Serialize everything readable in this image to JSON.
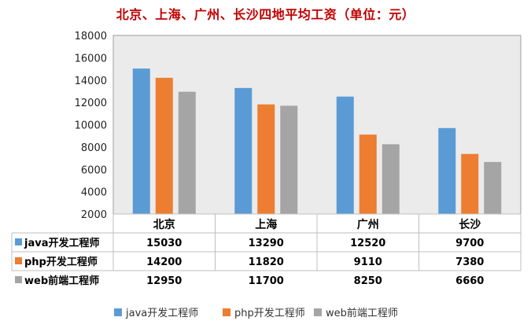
{
  "chart_data": {
    "type": "bar",
    "title": "北京、上海、广州、长沙四地平均工资（单位：元）",
    "categories": [
      "北京",
      "上海",
      "广州",
      "长沙"
    ],
    "series": [
      {
        "name": "java开发工程师",
        "color": "#5b9bd5",
        "values": [
          15030,
          13290,
          12520,
          9700
        ]
      },
      {
        "name": "php开发工程师",
        "color": "#ed7d31",
        "values": [
          14200,
          11820,
          9110,
          7380
        ]
      },
      {
        "name": "web前端工程师",
        "color": "#a5a5a5",
        "values": [
          12950,
          11700,
          8250,
          6660
        ]
      }
    ],
    "ylim": [
      2000,
      18000
    ],
    "yticks": [
      2000,
      4000,
      6000,
      8000,
      10000,
      12000,
      14000,
      16000,
      18000
    ],
    "grid": false,
    "plot_background": "#ebebeb",
    "data_table": true,
    "legend": "bottom"
  }
}
